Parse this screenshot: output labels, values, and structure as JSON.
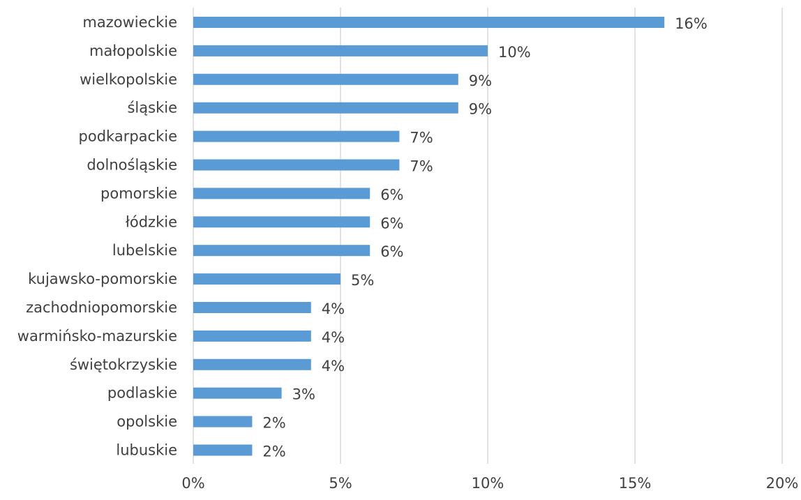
{
  "chart_data": {
    "type": "bar",
    "orientation": "horizontal",
    "title": "",
    "xlabel": "",
    "ylabel": "",
    "categories": [
      "mazowieckie",
      "małopolskie",
      "wielkopolskie",
      "śląskie",
      "podkarpackie",
      "dolnośląskie",
      "pomorskie",
      "łódzkie",
      "lubelskie",
      "kujawsko-pomorskie",
      "zachodniopomorskie",
      "warmińsko-mazurskie",
      "świętokrzyskie",
      "podlaskie",
      "opolskie",
      "lubuskie"
    ],
    "values": [
      16,
      10,
      9,
      9,
      7,
      7,
      6,
      6,
      6,
      5,
      4,
      4,
      4,
      3,
      2,
      2
    ],
    "value_labels": [
      "16%",
      "10%",
      "9%",
      "9%",
      "7%",
      "7%",
      "6%",
      "6%",
      "6%",
      "5%",
      "4%",
      "4%",
      "4%",
      "3%",
      "2%",
      "2%"
    ],
    "xlim": [
      0,
      20
    ],
    "x_ticks": [
      0,
      5,
      10,
      15,
      20
    ],
    "x_tick_labels": [
      "0%",
      "5%",
      "10%",
      "15%",
      "20%"
    ],
    "grid": true,
    "legend": "none",
    "bar_color": "#5b9bd5",
    "text_color": "#404040",
    "grid_color": "#d9d9d9"
  }
}
